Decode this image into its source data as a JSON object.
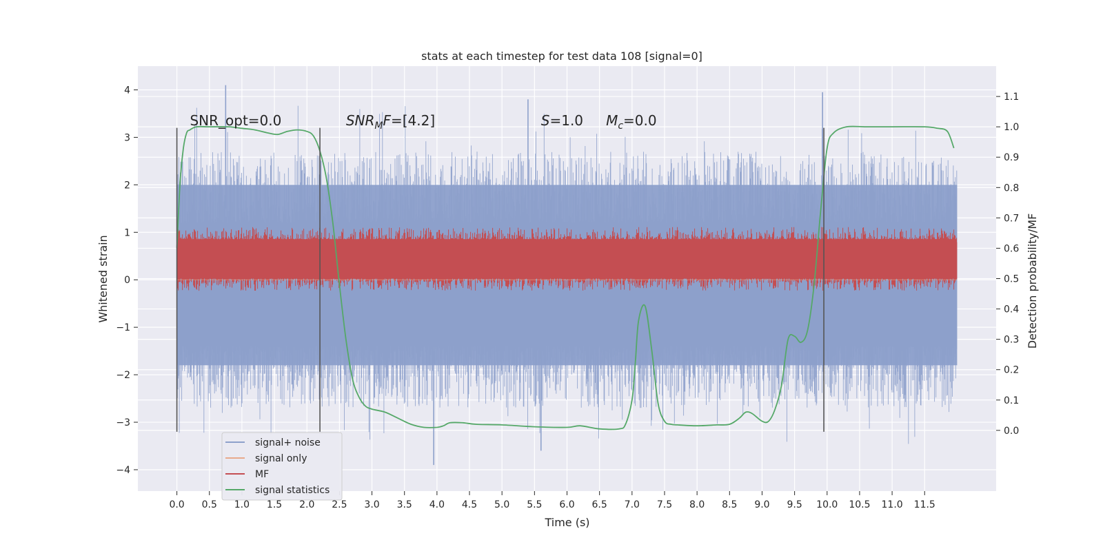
{
  "chart_data": {
    "type": "line",
    "title": "stats at each timestep for test data 108 [signal=0]",
    "xlabel": "Time (s)",
    "ylabel": "Whitened strain",
    "y2label": "Detection probability/MF",
    "xlim": [
      -0.6,
      12.6
    ],
    "ylim": [
      -4.45,
      4.5
    ],
    "y2lim": [
      -0.2,
      1.2
    ],
    "xticks": [
      0.0,
      0.5,
      1.0,
      1.5,
      2.0,
      2.5,
      3.0,
      3.5,
      4.0,
      4.5,
      5.0,
      5.5,
      6.0,
      6.5,
      7.0,
      7.5,
      8.0,
      8.5,
      9.0,
      9.5,
      10.0,
      10.5,
      11.0,
      11.5
    ],
    "xtick_labels": [
      "0.0",
      "0.5",
      "1.0",
      "1.5",
      "2.0",
      "2.5",
      "3.0",
      "3.5",
      "4.0",
      "4.5",
      "5.0",
      "5.5",
      "6.0",
      "6.5",
      "7.0",
      "7.5",
      "8.0",
      "8.5",
      "9.0",
      "9.5",
      "10.0",
      "10.5",
      "11.0",
      "11.5"
    ],
    "yticks": [
      -4,
      -3,
      -2,
      -1,
      0,
      1,
      2,
      3,
      4
    ],
    "ytick_labels": [
      "−4",
      "−3",
      "−2",
      "−1",
      "0",
      "1",
      "2",
      "3",
      "4"
    ],
    "y2ticks": [
      0.0,
      0.1,
      0.2,
      0.3,
      0.4,
      0.5,
      0.6,
      0.7,
      0.8,
      0.9,
      1.0,
      1.1
    ],
    "y2tick_labels": [
      "0.0",
      "0.1",
      "0.2",
      "0.3",
      "0.4",
      "0.5",
      "0.6",
      "0.7",
      "0.8",
      "0.9",
      "1.0",
      "1.1"
    ],
    "grid": true,
    "legend_position": "lower-left",
    "annotations": [
      {
        "x": 0.2,
        "y": 3.25,
        "parts": [
          {
            "t": "SNR_opt=0.0"
          }
        ]
      },
      {
        "x": 2.6,
        "y": 3.25,
        "parts": [
          {
            "t": "SNR",
            "italic": true
          },
          {
            "t": "M",
            "italic": true,
            "sub": true
          },
          {
            "t": "F",
            "italic": true
          },
          {
            "t": "=[4.2]"
          }
        ]
      },
      {
        "x": 5.6,
        "y": 3.25,
        "parts": [
          {
            "t": "S",
            "italic": true
          },
          {
            "t": "=1.0"
          }
        ]
      },
      {
        "x": 6.6,
        "y": 3.25,
        "parts": [
          {
            "t": "M",
            "italic": true
          },
          {
            "t": "c",
            "italic": true,
            "sub": true
          },
          {
            "t": "=0.0"
          }
        ]
      }
    ],
    "vertical_lines": {
      "x": [
        0.0,
        2.2,
        9.95
      ],
      "ymin": -3.2,
      "ymax": 3.2,
      "color": "#555555"
    },
    "series": [
      {
        "name": "signal+ noise",
        "axis": "left",
        "color": "#8da0cb",
        "style": "noise",
        "x_range": [
          0.0,
          12.0
        ],
        "envelope": [
          -1.8,
          2.0
        ],
        "peaks_max": [
          4.1,
          3.8,
          3.95
        ],
        "peaks_min": [
          -3.9,
          -3.6
        ]
      },
      {
        "name": "signal only",
        "axis": "left",
        "color": "#e8a98b",
        "style": "flat",
        "x_range": [
          0.0,
          12.0
        ],
        "values": [
          0.0,
          0.0
        ]
      },
      {
        "name": "MF",
        "axis": "right",
        "color": "#c44e52",
        "style": "band",
        "x_range": [
          0.0,
          12.0
        ],
        "band": [
          0.5,
          0.62
        ],
        "spikes_max": 0.66
      },
      {
        "name": "signal statistics",
        "axis": "right",
        "color": "#55a868",
        "style": "line",
        "x": [
          0.0,
          0.05,
          0.1,
          0.15,
          0.2,
          0.3,
          0.5,
          0.8,
          1.0,
          1.2,
          1.4,
          1.55,
          1.7,
          1.85,
          2.0,
          2.1,
          2.2,
          2.3,
          2.4,
          2.5,
          2.6,
          2.7,
          2.8,
          2.9,
          3.0,
          3.2,
          3.4,
          3.6,
          3.8,
          4.0,
          4.1,
          4.2,
          4.4,
          4.6,
          5.0,
          5.5,
          6.0,
          6.2,
          6.5,
          6.8,
          6.9,
          7.0,
          7.05,
          7.1,
          7.2,
          7.3,
          7.4,
          7.5,
          7.6,
          7.7,
          8.0,
          8.3,
          8.5,
          8.65,
          8.75,
          8.85,
          9.0,
          9.1,
          9.2,
          9.3,
          9.4,
          9.5,
          9.6,
          9.7,
          9.8,
          9.9,
          10.0,
          10.1,
          10.3,
          10.6,
          11.0,
          11.5,
          11.7,
          11.85,
          11.95
        ],
        "values": [
          0.6,
          0.82,
          0.93,
          0.98,
          0.99,
          1.0,
          1.0,
          1.0,
          0.995,
          0.99,
          0.98,
          0.975,
          0.985,
          0.99,
          0.985,
          0.97,
          0.92,
          0.83,
          0.68,
          0.48,
          0.3,
          0.17,
          0.11,
          0.08,
          0.07,
          0.06,
          0.04,
          0.02,
          0.01,
          0.01,
          0.015,
          0.025,
          0.025,
          0.02,
          0.018,
          0.012,
          0.01,
          0.015,
          0.005,
          0.005,
          0.02,
          0.1,
          0.22,
          0.36,
          0.41,
          0.27,
          0.09,
          0.03,
          0.02,
          0.018,
          0.015,
          0.018,
          0.02,
          0.04,
          0.06,
          0.055,
          0.03,
          0.03,
          0.07,
          0.15,
          0.3,
          0.31,
          0.29,
          0.33,
          0.48,
          0.72,
          0.93,
          0.98,
          1.0,
          1.0,
          1.0,
          1.0,
          0.995,
          0.985,
          0.93
        ]
      }
    ]
  }
}
